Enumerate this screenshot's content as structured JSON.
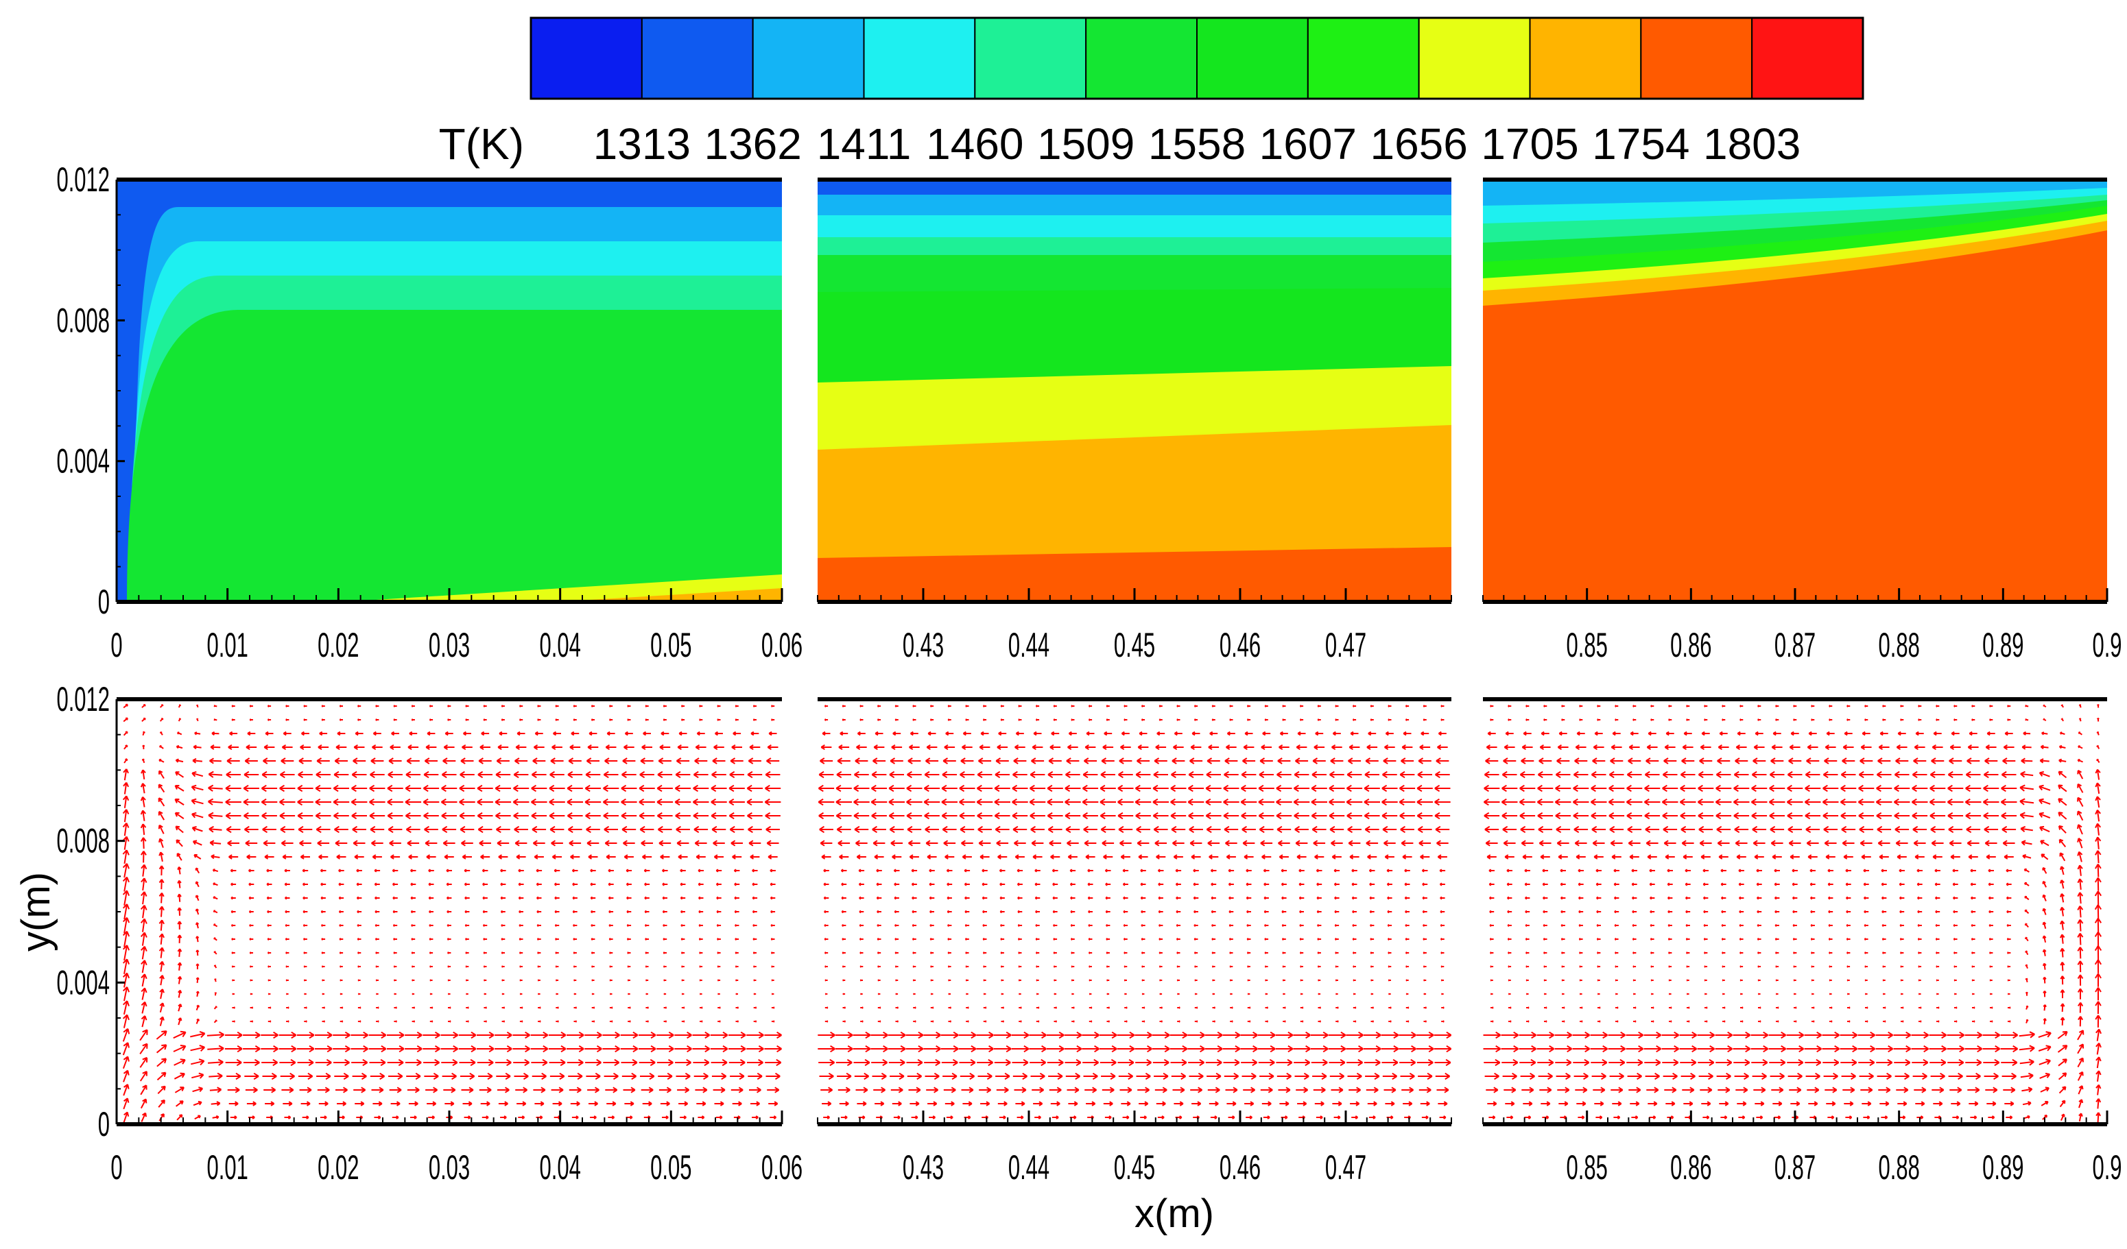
{
  "chart_data": {
    "type": "contour_and_vector_field",
    "colorbar": {
      "title": "T(K)",
      "levels": [
        1313,
        1362,
        1411,
        1460,
        1509,
        1558,
        1607,
        1656,
        1705,
        1754,
        1803
      ],
      "band_colors": [
        "#0a1ef0",
        "#0f5af0",
        "#14b4f5",
        "#1ef0f0",
        "#1ef096",
        "#14e632",
        "#14e61e",
        "#1ef014",
        "#e6ff14",
        "#ffb400",
        "#ff5a00",
        "#ff1414"
      ]
    },
    "xlabel": "x(m)",
    "ylabel": "y(m)",
    "ylim": [
      0,
      0.012
    ],
    "y_ticks": [
      "0",
      "0.004",
      "0.008",
      "0.012"
    ],
    "vector_color": "#ff0000",
    "panels": [
      {
        "id": "inlet",
        "xlim": [
          0,
          0.06
        ],
        "x_ticks": [
          "0",
          "0.01",
          "0.02",
          "0.03",
          "0.04",
          "0.05",
          "0.06"
        ],
        "temperature_field": "cool inlet corner, mostly 1607 K band, thin warm layer near bottom right",
        "velocity_field": "recirculation near inlet, counter-flow in middle, forward flow near bottom"
      },
      {
        "id": "middle",
        "xlim": [
          0.42,
          0.48
        ],
        "x_ticks": [
          "0.43",
          "0.44",
          "0.45",
          "0.46",
          "0.47"
        ],
        "temperature_field": "stratified bands from 1362 K at top to 1754 K at bottom",
        "velocity_field": "parallel counter-current flow"
      },
      {
        "id": "outlet",
        "xlim": [
          0.84,
          0.9
        ],
        "x_ticks": [
          "0.85",
          "0.86",
          "0.87",
          "0.88",
          "0.89",
          "0.9"
        ],
        "temperature_field": "mostly 1754 K band, thin cool layer near top",
        "velocity_field": "flow turning around near x = 0.9"
      }
    ]
  }
}
